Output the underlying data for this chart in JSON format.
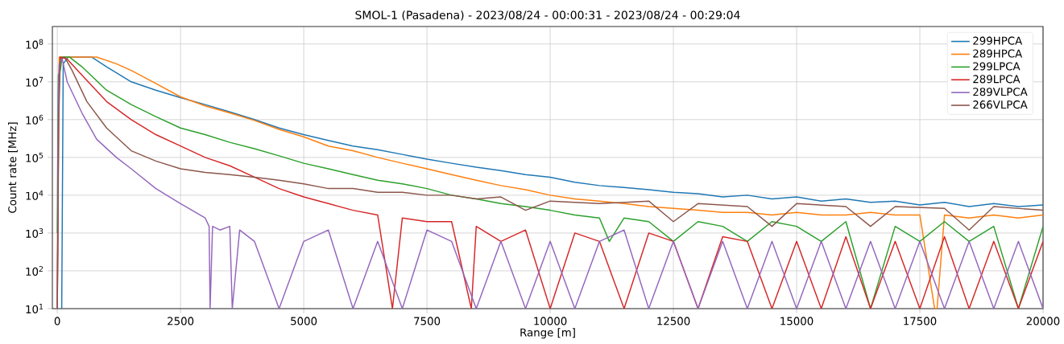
{
  "chart_data": {
    "type": "line",
    "title": "SMOL-1 (Pasadena) - 2023/08/24 - 00:00:31 - 2023/08/24 - 00:29:04",
    "xlabel": "Range [m]",
    "ylabel": "Count rate [MHz]",
    "xlim": [
      -100,
      20000
    ],
    "xticks": [
      0,
      2500,
      5000,
      7500,
      10000,
      12500,
      15000,
      17500,
      20000
    ],
    "ylim": [
      10,
      290000000
    ],
    "log": true,
    "yticks": [
      {
        "value": 10,
        "label": "10$^{1}$"
      },
      {
        "value": 100,
        "label": "10$^{2}$"
      },
      {
        "value": 1000,
        "label": "10$^{3}$"
      },
      {
        "value": 10000,
        "label": "10$^{4}$"
      },
      {
        "value": 100000,
        "label": "10$^{5}$"
      },
      {
        "value": 1000000,
        "label": "10$^{6}$"
      },
      {
        "value": 10000000,
        "label": "10$^{7}$"
      },
      {
        "value": 100000000,
        "label": "10$^{8}$"
      }
    ],
    "grid": true,
    "legend": "top right",
    "series": [
      {
        "name": "299HPCA",
        "color": "#1f77b4",
        "x": [
          90,
          120,
          220,
          300,
          700,
          1000,
          1500,
          2000,
          2500,
          3000,
          3500,
          4000,
          4500,
          5000,
          5500,
          6000,
          6500,
          7000,
          7500,
          8000,
          8500,
          9000,
          9500,
          10000,
          10500,
          11000,
          11500,
          12000,
          12500,
          13000,
          13500,
          14000,
          14500,
          15000,
          15500,
          16000,
          16500,
          17000,
          17500,
          18000,
          18500,
          19000,
          19500,
          20000
        ],
        "values": [
          10,
          30000000,
          45000000,
          45000000,
          45000000,
          25000000,
          10000000,
          6000000,
          3800000,
          2500000,
          1600000,
          1000000,
          600000,
          400000,
          280000,
          200000,
          160000,
          120000,
          90000,
          70000,
          55000,
          45000,
          35000,
          30000,
          22000,
          18000,
          16000,
          14000,
          12000,
          11000,
          9000,
          10000,
          8000,
          9000,
          7000,
          8000,
          6500,
          7000,
          5500,
          6500,
          5000,
          6000,
          5000,
          5500
        ]
      },
      {
        "name": "289HPCA",
        "color": "#ff7f0e",
        "x": [
          0,
          20,
          40,
          300,
          800,
          1200,
          1500,
          2000,
          2500,
          3000,
          3500,
          4000,
          4500,
          5000,
          5500,
          6000,
          6500,
          7000,
          7500,
          8000,
          8500,
          9000,
          9500,
          10000,
          10500,
          11000,
          11500,
          12000,
          12500,
          13000,
          13500,
          14000,
          14500,
          15000,
          15500,
          16000,
          16500,
          17000,
          17500,
          17800,
          17850,
          18000,
          18500,
          19000,
          19500,
          20000
        ],
        "values": [
          10,
          1000000,
          45000000,
          45000000,
          45000000,
          30000000,
          20000000,
          9000000,
          4000000,
          2300000,
          1500000,
          950000,
          550000,
          350000,
          200000,
          150000,
          100000,
          70000,
          50000,
          35000,
          25000,
          18000,
          14000,
          10000,
          8000,
          7000,
          6000,
          5000,
          4500,
          4000,
          3500,
          3500,
          3000,
          3500,
          3000,
          3000,
          3500,
          3000,
          3000,
          10,
          10,
          3000,
          2500,
          3000,
          2500,
          3000
        ]
      },
      {
        "name": "299LPCA",
        "color": "#2ca02c",
        "x": [
          0,
          20,
          60,
          100,
          250,
          500,
          1000,
          1500,
          2000,
          2500,
          3000,
          3500,
          4000,
          4500,
          5000,
          5500,
          6000,
          6500,
          7000,
          7500,
          8000,
          8500,
          9000,
          9500,
          10000,
          10500,
          11000,
          11200,
          11500,
          12000,
          12500,
          13000,
          13500,
          14000,
          14500,
          15000,
          15500,
          16000,
          16500,
          17000,
          17500,
          18000,
          18500,
          19000,
          19500,
          20000
        ],
        "values": [
          1000,
          15000000,
          20000000,
          45000000,
          45000000,
          25000000,
          6000000,
          2500000,
          1200000,
          600000,
          400000,
          250000,
          170000,
          110000,
          70000,
          50000,
          35000,
          25000,
          20000,
          15000,
          10000,
          8000,
          6000,
          5000,
          4000,
          3000,
          2500,
          600,
          2500,
          2000,
          600,
          2000,
          1500,
          600,
          2000,
          1500,
          600,
          2000,
          10,
          1500,
          600,
          2000,
          600,
          1500,
          10,
          1500
        ]
      },
      {
        "name": "289LPCA",
        "color": "#d62728",
        "x": [
          0,
          30,
          60,
          200,
          500,
          1000,
          1500,
          2000,
          2500,
          3000,
          3500,
          4000,
          4500,
          5000,
          5500,
          6000,
          6500,
          6800,
          7000,
          7500,
          8000,
          8400,
          8500,
          9000,
          9500,
          10000,
          10500,
          11000,
          11500,
          12000,
          12500,
          13000,
          13500,
          14000,
          14500,
          15000,
          15500,
          16000,
          16500,
          17000,
          17500,
          18000,
          18500,
          19000,
          19500,
          20000
        ],
        "values": [
          10,
          5000000,
          45000000,
          40000000,
          15000000,
          3000000,
          1000000,
          400000,
          200000,
          100000,
          60000,
          30000,
          15000,
          9000,
          6000,
          4000,
          3000,
          10,
          2500,
          2000,
          2000,
          10,
          1500,
          600,
          1200,
          10,
          1000,
          600,
          10,
          1000,
          600,
          10,
          800,
          600,
          10,
          600,
          10,
          800,
          10,
          600,
          10,
          800,
          10,
          600,
          10,
          600
        ]
      },
      {
        "name": "289VLPCA",
        "color": "#9467bd",
        "x": [
          0,
          20,
          40,
          100,
          200,
          500,
          800,
          1200,
          1500,
          2000,
          2500,
          3000,
          3080,
          3100,
          3150,
          3300,
          3500,
          3550,
          3700,
          4000,
          4500,
          5000,
          5500,
          6000,
          6500,
          7000,
          7500,
          8000,
          8500,
          9000,
          9500,
          10000,
          10500,
          11000,
          11500,
          12000,
          12500,
          13000,
          13500,
          14000,
          14500,
          15000,
          15500,
          16000,
          16500,
          17000,
          17500,
          18000,
          18500,
          19000,
          19500,
          20000
        ],
        "values": [
          10,
          5000000,
          30000000,
          40000000,
          10000000,
          1500000,
          300000,
          100000,
          50000,
          15000,
          6000,
          2500,
          1500,
          10,
          1500,
          1200,
          1500,
          10,
          1200,
          600,
          10,
          600,
          1200,
          10,
          600,
          10,
          1200,
          600,
          10,
          600,
          10,
          600,
          10,
          600,
          1200,
          10,
          600,
          10,
          600,
          10,
          600,
          10,
          600,
          10,
          600,
          10,
          600,
          10,
          600,
          10,
          600,
          10
        ]
      },
      {
        "name": "266VLPCA",
        "color": "#8c564b",
        "x": [
          0,
          30,
          60,
          150,
          300,
          600,
          1000,
          1500,
          2000,
          2500,
          3000,
          3500,
          4000,
          4500,
          5000,
          5500,
          6000,
          6500,
          7000,
          7500,
          8000,
          8500,
          9000,
          9500,
          10000,
          11000,
          12000,
          12500,
          13000,
          14000,
          14500,
          15000,
          16000,
          16500,
          17000,
          18000,
          18500,
          19000,
          20000
        ],
        "values": [
          10,
          1000000,
          40000000,
          45000000,
          20000000,
          3000000,
          600000,
          150000,
          80000,
          50000,
          40000,
          35000,
          30000,
          25000,
          20000,
          15000,
          15000,
          12000,
          12000,
          10000,
          10000,
          8000,
          9000,
          4000,
          7000,
          6000,
          7000,
          2000,
          6000,
          5000,
          1500,
          6000,
          5000,
          1500,
          5000,
          4500,
          1200,
          5000,
          4000
        ]
      }
    ]
  }
}
